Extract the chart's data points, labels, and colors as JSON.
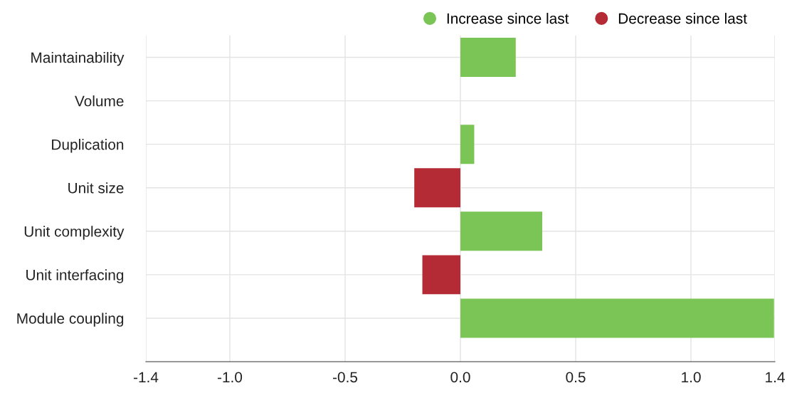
{
  "chart_data": {
    "type": "bar",
    "orientation": "horizontal",
    "categories": [
      "Maintainability",
      "Volume",
      "Duplication",
      "Unit size",
      "Unit complexity",
      "Unit interfacing",
      "Module coupling"
    ],
    "series": [
      {
        "name": "Increase since last",
        "color": "#7ac555",
        "values": [
          0.24,
          null,
          0.06,
          null,
          0.355,
          null,
          1.36
        ]
      },
      {
        "name": "Decrease since last",
        "color": "#b52b35",
        "values": [
          null,
          null,
          null,
          -0.2,
          null,
          -0.165,
          null
        ]
      }
    ],
    "xlim": [
      -1.364,
      1.364
    ],
    "xticks": [
      {
        "value": -1.364,
        "label": "-1.4"
      },
      {
        "value": -1,
        "label": "-1.0"
      },
      -0.5,
      {
        "value": 0,
        "label": "0.0"
      },
      0.5,
      {
        "value": 1,
        "label": "1.0"
      },
      {
        "value": 1.364,
        "label": "1.4"
      }
    ],
    "grid": true,
    "legend": "top right"
  }
}
